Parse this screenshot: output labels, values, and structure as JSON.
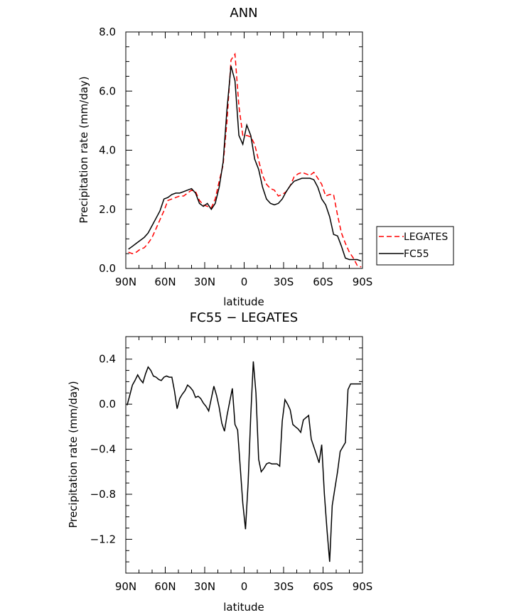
{
  "chart_data": [
    {
      "type": "line",
      "title": "ANN",
      "xlabel": "latitude",
      "ylabel": "Precipitation rate (mm/day)",
      "xlim": [
        90,
        -90
      ],
      "ylim": [
        0,
        8
      ],
      "x_ticks": [
        90,
        60,
        30,
        0,
        -30,
        -60,
        -90
      ],
      "x_tick_labels": [
        "90N",
        "60N",
        "30N",
        "0",
        "30S",
        "60S",
        "90S"
      ],
      "y_ticks": [
        0,
        2,
        4,
        6,
        8
      ],
      "y_tick_labels": [
        "0.0",
        "2.0",
        "4.0",
        "6.0",
        "8.0"
      ],
      "x": [
        88,
        85,
        82,
        79,
        76,
        73,
        70,
        67,
        64,
        61,
        58,
        55,
        52,
        49,
        46,
        43,
        40,
        37,
        34,
        31,
        28,
        25,
        22,
        19,
        16,
        13,
        10,
        7,
        4,
        1,
        -2,
        -5,
        -8,
        -11,
        -14,
        -17,
        -20,
        -23,
        -26,
        -29,
        -32,
        -35,
        -38,
        -41,
        -44,
        -47,
        -50,
        -53,
        -56,
        -59,
        -62,
        -65,
        -68,
        -71,
        -74,
        -77,
        -80,
        -83,
        -86,
        -89
      ],
      "series": [
        {
          "name": "LEGATES",
          "color": "#ff0000",
          "dash": "dashed",
          "values": [
            0.55,
            0.5,
            0.55,
            0.65,
            0.7,
            0.85,
            1.05,
            1.35,
            1.65,
            1.95,
            2.3,
            2.35,
            2.4,
            2.45,
            2.45,
            2.55,
            2.65,
            2.6,
            2.3,
            2.15,
            2.1,
            2.05,
            2.35,
            2.95,
            3.5,
            5.0,
            7.05,
            7.25,
            5.5,
            4.5,
            4.5,
            4.45,
            4.2,
            3.65,
            3.15,
            2.85,
            2.7,
            2.65,
            2.45,
            2.5,
            2.6,
            2.8,
            3.1,
            3.2,
            3.25,
            3.2,
            3.15,
            3.25,
            3.05,
            2.85,
            2.45,
            2.5,
            2.5,
            1.8,
            1.2,
            0.85,
            0.55,
            0.35,
            0.1,
            0.05
          ]
        },
        {
          "name": "FC55",
          "color": "#000000",
          "dash": "solid",
          "values": [
            0.65,
            0.75,
            0.85,
            0.95,
            1.05,
            1.2,
            1.45,
            1.7,
            1.95,
            2.35,
            2.4,
            2.5,
            2.55,
            2.55,
            2.6,
            2.65,
            2.7,
            2.55,
            2.2,
            2.1,
            2.2,
            2.0,
            2.2,
            2.75,
            3.6,
            5.4,
            6.85,
            6.35,
            4.5,
            4.2,
            4.85,
            4.5,
            3.7,
            3.35,
            2.75,
            2.35,
            2.2,
            2.15,
            2.2,
            2.35,
            2.6,
            2.8,
            2.95,
            3.0,
            3.05,
            3.05,
            3.05,
            3.0,
            2.75,
            2.35,
            2.15,
            1.75,
            1.15,
            1.1,
            0.75,
            0.35,
            0.3,
            0.3,
            0.3,
            0.25
          ]
        }
      ],
      "legend": {
        "position": "right",
        "entries": [
          "LEGATES",
          "FC55"
        ]
      }
    },
    {
      "type": "line",
      "title": "FC55 − LEGATES",
      "xlabel": "latitude",
      "ylabel": "Precipitation rate (mm/day)",
      "xlim": [
        90,
        -90
      ],
      "ylim": [
        -1.5,
        0.6
      ],
      "x_ticks": [
        90,
        60,
        30,
        0,
        -30,
        -60,
        -90
      ],
      "x_tick_labels": [
        "90N",
        "60N",
        "30N",
        "0",
        "30S",
        "60S",
        "90S"
      ],
      "y_ticks": [
        0.4,
        0.0,
        -0.4,
        -0.8,
        -1.2
      ],
      "y_tick_labels": [
        "0.4",
        "0.0",
        "−0.4",
        "−0.8",
        "−1.2"
      ],
      "x": [
        89,
        87,
        85,
        83,
        81,
        79,
        77,
        75,
        73,
        71,
        69,
        67,
        65,
        63,
        61,
        59,
        57,
        55,
        53,
        51,
        49,
        47,
        45,
        43,
        41,
        39,
        37,
        35,
        33,
        31,
        29,
        27,
        25,
        23,
        21,
        19,
        17,
        15,
        13,
        11,
        9,
        7,
        5,
        3,
        1,
        -1,
        -3,
        -5,
        -7,
        -9,
        -11,
        -13,
        -15,
        -17,
        -19,
        -21,
        -23,
        -25,
        -27,
        -29,
        -31,
        -33,
        -35,
        -37,
        -39,
        -41,
        -43,
        -45,
        -47,
        -49,
        -51,
        -53,
        -55,
        -57,
        -59,
        -61,
        -63,
        -65,
        -67,
        -69,
        -71,
        -73,
        -75,
        -77,
        -79,
        -81,
        -83,
        -85,
        -87,
        -89
      ],
      "series": [
        {
          "name": "FC55",
          "color": "#000000",
          "dash": "solid",
          "values": [
            -0.01,
            0.08,
            0.17,
            0.21,
            0.26,
            0.22,
            0.19,
            0.27,
            0.33,
            0.3,
            0.25,
            0.24,
            0.22,
            0.21,
            0.24,
            0.25,
            0.24,
            0.24,
            0.12,
            -0.04,
            0.05,
            0.09,
            0.12,
            0.17,
            0.15,
            0.12,
            0.06,
            0.07,
            0.05,
            0.01,
            -0.02,
            -0.06,
            0.05,
            0.16,
            0.08,
            -0.03,
            -0.17,
            -0.24,
            -0.1,
            0.02,
            0.14,
            -0.18,
            -0.23,
            -0.55,
            -0.88,
            -1.11,
            -0.7,
            -0.1,
            0.38,
            0.1,
            -0.49,
            -0.6,
            -0.57,
            -0.53,
            -0.52,
            -0.53,
            -0.53,
            -0.53,
            -0.55,
            -0.15,
            0.04,
            0.0,
            -0.05,
            -0.18,
            -0.2,
            -0.22,
            -0.25,
            -0.14,
            -0.12,
            -0.1,
            -0.31,
            -0.38,
            -0.45,
            -0.52,
            -0.36,
            -0.8,
            -1.12,
            -1.4,
            -0.9,
            -0.75,
            -0.6,
            -0.42,
            -0.38,
            -0.34,
            0.13,
            0.18,
            0.18,
            0.18,
            0.18,
            0.18
          ]
        }
      ]
    }
  ]
}
